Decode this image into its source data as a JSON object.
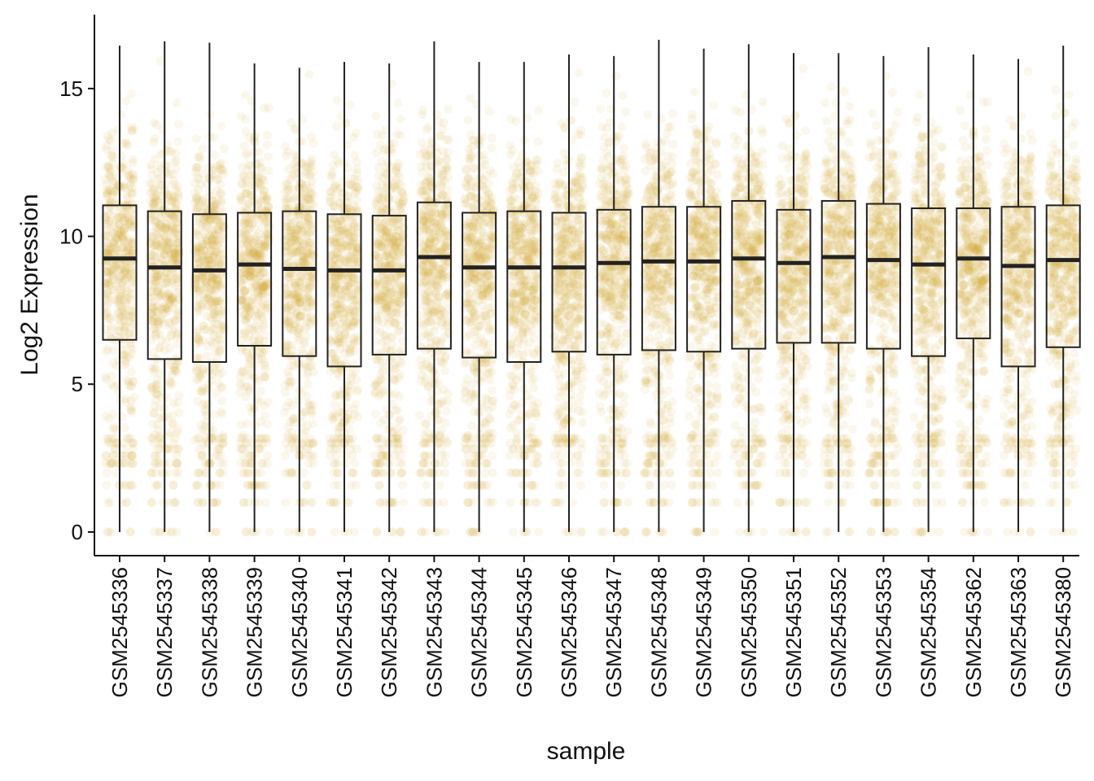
{
  "chart_data": {
    "type": "boxplot",
    "title": "",
    "xlabel": "sample",
    "ylabel": "Log2 Expression",
    "ylim": [
      -0.8,
      17.5
    ],
    "yticks": [
      0,
      5,
      10,
      15
    ],
    "grid": false,
    "legend": "none",
    "colors": {
      "points": "#D4A72C",
      "box": "#222222",
      "axis": "#111111"
    },
    "jitter_points": true,
    "categories": [
      "GSM2545336",
      "GSM2545337",
      "GSM2545338",
      "GSM2545339",
      "GSM2545340",
      "GSM2545341",
      "GSM2545342",
      "GSM2545343",
      "GSM2545344",
      "GSM2545345",
      "GSM2545346",
      "GSM2545347",
      "GSM2545348",
      "GSM2545349",
      "GSM2545350",
      "GSM2545351",
      "GSM2545352",
      "GSM2545353",
      "GSM2545354",
      "GSM2545362",
      "GSM2545363",
      "GSM2545380"
    ],
    "boxes": [
      {
        "min": 0,
        "q1": 6.5,
        "median": 9.25,
        "q3": 11.05,
        "max": 16.45
      },
      {
        "min": 0,
        "q1": 5.85,
        "median": 8.95,
        "q3": 10.85,
        "max": 16.6
      },
      {
        "min": 0,
        "q1": 5.75,
        "median": 8.85,
        "q3": 10.75,
        "max": 16.55
      },
      {
        "min": 0,
        "q1": 6.3,
        "median": 9.05,
        "q3": 10.8,
        "max": 15.85
      },
      {
        "min": 0,
        "q1": 5.95,
        "median": 8.9,
        "q3": 10.85,
        "max": 15.7
      },
      {
        "min": 0,
        "q1": 5.6,
        "median": 8.85,
        "q3": 10.75,
        "max": 15.9
      },
      {
        "min": 0,
        "q1": 6.0,
        "median": 8.85,
        "q3": 10.7,
        "max": 15.85
      },
      {
        "min": 0,
        "q1": 6.2,
        "median": 9.3,
        "q3": 11.15,
        "max": 16.6
      },
      {
        "min": 0,
        "q1": 5.9,
        "median": 8.95,
        "q3": 10.8,
        "max": 15.9
      },
      {
        "min": 0,
        "q1": 5.75,
        "median": 8.95,
        "q3": 10.85,
        "max": 15.9
      },
      {
        "min": 0,
        "q1": 6.1,
        "median": 8.95,
        "q3": 10.8,
        "max": 16.15
      },
      {
        "min": 0,
        "q1": 6.0,
        "median": 9.1,
        "q3": 10.9,
        "max": 16.1
      },
      {
        "min": 0,
        "q1": 6.15,
        "median": 9.15,
        "q3": 11.0,
        "max": 16.65
      },
      {
        "min": 0,
        "q1": 6.1,
        "median": 9.15,
        "q3": 11.0,
        "max": 16.35
      },
      {
        "min": 0,
        "q1": 6.2,
        "median": 9.25,
        "q3": 11.2,
        "max": 16.5
      },
      {
        "min": 0,
        "q1": 6.4,
        "median": 9.1,
        "q3": 10.9,
        "max": 16.2
      },
      {
        "min": 0,
        "q1": 6.4,
        "median": 9.3,
        "q3": 11.2,
        "max": 16.2
      },
      {
        "min": 0,
        "q1": 6.2,
        "median": 9.2,
        "q3": 11.1,
        "max": 16.1
      },
      {
        "min": 0,
        "q1": 5.95,
        "median": 9.05,
        "q3": 10.95,
        "max": 16.4
      },
      {
        "min": 0,
        "q1": 6.55,
        "median": 9.25,
        "q3": 10.95,
        "max": 16.15
      },
      {
        "min": 0,
        "q1": 5.6,
        "median": 9.0,
        "q3": 11.0,
        "max": 16.0
      },
      {
        "min": 0,
        "q1": 6.25,
        "median": 9.2,
        "q3": 11.05,
        "max": 16.45
      }
    ]
  }
}
